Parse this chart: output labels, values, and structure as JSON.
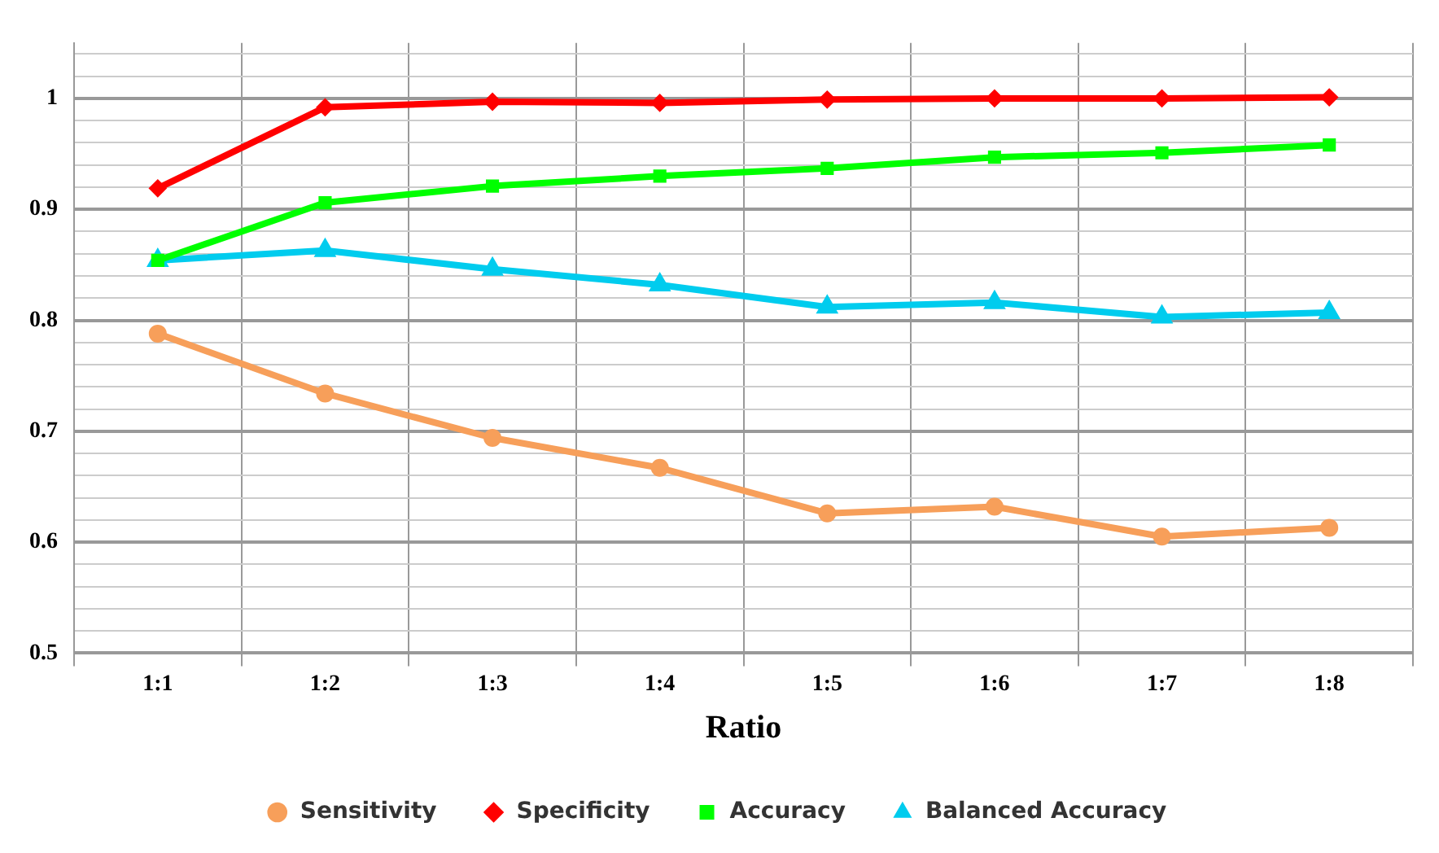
{
  "chart_data": {
    "type": "line",
    "xlabel": "Ratio",
    "categories": [
      "1:1",
      "1:2",
      "1:3",
      "1:4",
      "1:5",
      "1:6",
      "1:7",
      "1:8"
    ],
    "series": [
      {
        "name": "Sensitivity",
        "color": "#f79f5a",
        "marker": "circle",
        "values": [
          0.788,
          0.734,
          0.694,
          0.667,
          0.626,
          0.632,
          0.605,
          0.613
        ]
      },
      {
        "name": "Specificity",
        "color": "#ff0000",
        "marker": "diamond",
        "values": [
          0.919,
          0.992,
          0.997,
          0.996,
          0.999,
          1.0,
          1.0,
          1.001
        ]
      },
      {
        "name": "Accuracy",
        "color": "#00ff00",
        "marker": "square",
        "values": [
          0.854,
          0.906,
          0.921,
          0.93,
          0.937,
          0.947,
          0.951,
          0.958
        ]
      },
      {
        "name": "Balanced Accuracy",
        "color": "#00ccee",
        "marker": "triangle",
        "values": [
          0.854,
          0.863,
          0.846,
          0.832,
          0.812,
          0.816,
          0.803,
          0.807
        ]
      }
    ],
    "ylim": [
      0.5,
      1.05
    ],
    "yticks": [
      0.5,
      {
        "value": 0.52,
        "label": null
      },
      {
        "value": 0.54,
        "label": null
      },
      {
        "value": 0.56,
        "label": null
      },
      {
        "value": 0.58,
        "label": null
      },
      0.6,
      {
        "value": 0.62,
        "label": null
      },
      {
        "value": 0.64,
        "label": null
      },
      {
        "value": 0.66,
        "label": null
      },
      {
        "value": 0.68,
        "label": null
      },
      0.7,
      {
        "value": 0.72,
        "label": null
      },
      {
        "value": 0.74,
        "label": null
      },
      {
        "value": 0.76,
        "label": null
      },
      {
        "value": 0.78,
        "label": null
      },
      0.8,
      {
        "value": 0.82,
        "label": null
      },
      {
        "value": 0.84,
        "label": null
      },
      {
        "value": 0.86,
        "label": null
      },
      {
        "value": 0.88,
        "label": null
      },
      0.9,
      {
        "value": 0.92,
        "label": null
      },
      {
        "value": 0.94,
        "label": null
      },
      {
        "value": 0.96,
        "label": null
      },
      {
        "value": 0.98,
        "label": null
      },
      {
        "value": 1,
        "label": "1"
      },
      {
        "value": 1.02,
        "label": null
      },
      {
        "value": 1.04,
        "label": null
      }
    ],
    "grid": true,
    "legend": "bottom"
  }
}
